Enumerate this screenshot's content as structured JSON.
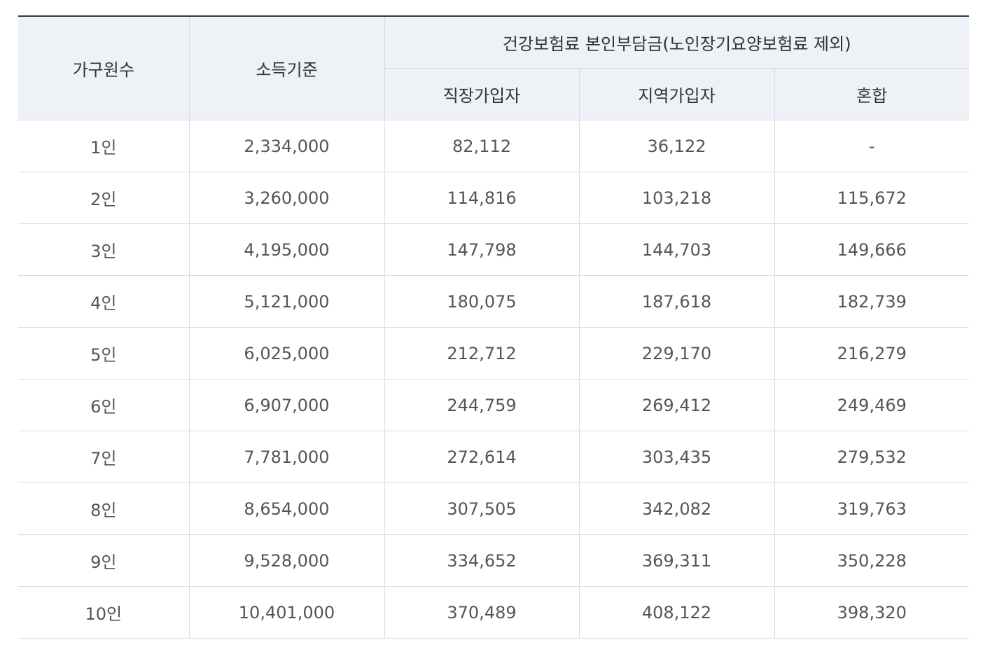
{
  "table": {
    "headers": {
      "household": "가구원수",
      "income": "소득기준",
      "premium_group": "건강보험료 본인부담금(노인장기요양보험료 제외)",
      "employee": "직장가입자",
      "regional": "지역가입자",
      "mixed": "혼합"
    },
    "rows": [
      {
        "household": "1인",
        "income": "2,334,000",
        "employee": "82,112",
        "regional": "36,122",
        "mixed": "-"
      },
      {
        "household": "2인",
        "income": "3,260,000",
        "employee": "114,816",
        "regional": "103,218",
        "mixed": "115,672"
      },
      {
        "household": "3인",
        "income": "4,195,000",
        "employee": "147,798",
        "regional": "144,703",
        "mixed": "149,666"
      },
      {
        "household": "4인",
        "income": "5,121,000",
        "employee": "180,075",
        "regional": "187,618",
        "mixed": "182,739"
      },
      {
        "household": "5인",
        "income": "6,025,000",
        "employee": "212,712",
        "regional": "229,170",
        "mixed": "216,279"
      },
      {
        "household": "6인",
        "income": "6,907,000",
        "employee": "244,759",
        "regional": "269,412",
        "mixed": "249,469"
      },
      {
        "household": "7인",
        "income": "7,781,000",
        "employee": "272,614",
        "regional": "303,435",
        "mixed": "279,532"
      },
      {
        "household": "8인",
        "income": "8,654,000",
        "employee": "307,505",
        "regional": "342,082",
        "mixed": "319,763"
      },
      {
        "household": "9인",
        "income": "9,528,000",
        "employee": "334,652",
        "regional": "369,311",
        "mixed": "350,228"
      },
      {
        "household": "10인",
        "income": "10,401,000",
        "employee": "370,489",
        "regional": "408,122",
        "mixed": "398,320"
      }
    ]
  }
}
